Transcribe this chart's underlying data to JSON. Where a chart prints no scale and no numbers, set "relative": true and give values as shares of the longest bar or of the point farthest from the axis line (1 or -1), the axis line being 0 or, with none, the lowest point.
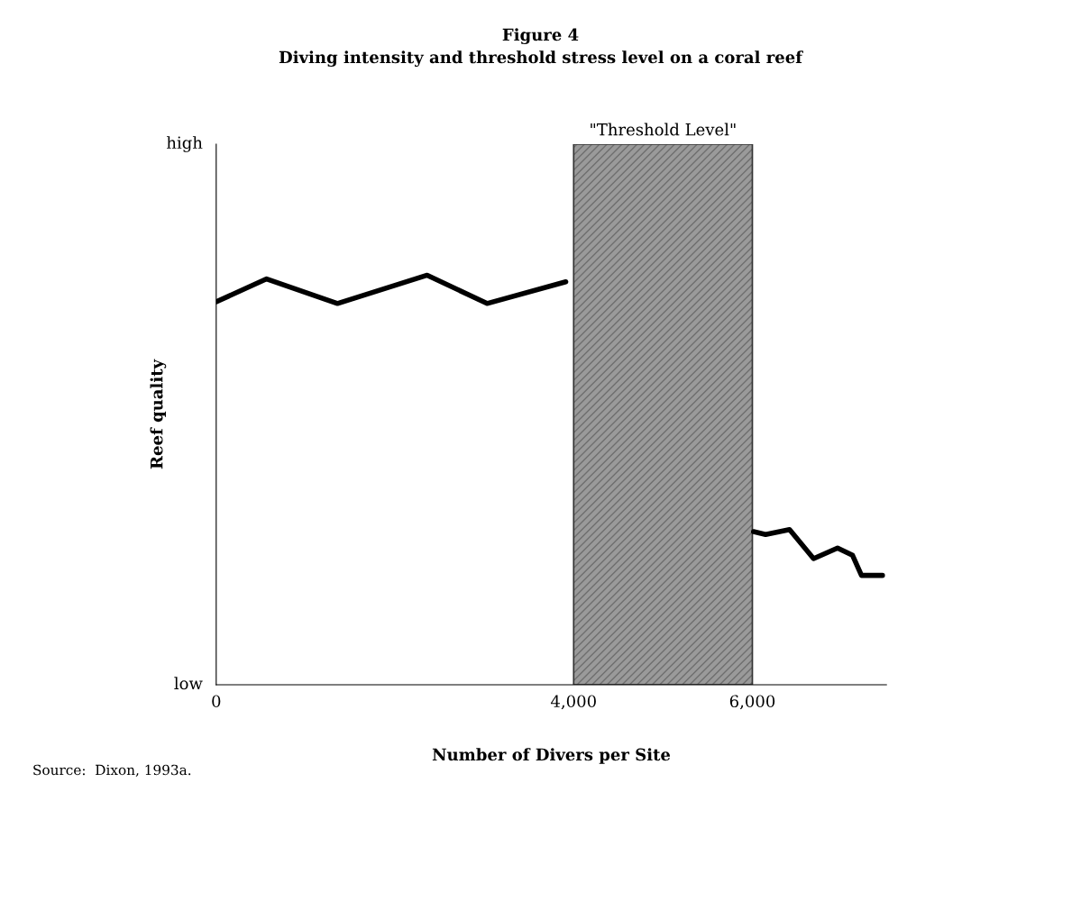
{
  "chart_data": {
    "type": "line",
    "title": "Figure 4",
    "subtitle": "Diving intensity and threshold stress level on a coral reef",
    "xlabel": "Number of Divers per Site",
    "ylabel": "Reef quality",
    "xlim": [
      0,
      7500
    ],
    "xticks": [
      {
        "value": 0,
        "label": "0"
      },
      {
        "value": 4000,
        "label": "4,000"
      },
      {
        "value": 6000,
        "label": "6,000"
      }
    ],
    "relative": true,
    "series": [
      {
        "color": "#000000",
        "x": [
          0,
          564,
          1357,
          2361,
          3031,
          3912
        ],
        "values": [
          0.935,
          0.991,
          0.931,
          1,
          0.931,
          0.984
        ]
      },
      {
        "color": "#000000",
        "x": [
          6013,
          6148,
          6416,
          6685,
          6953,
          7121,
          7221,
          7456
        ],
        "values": [
          0.374,
          0.367,
          0.379,
          0.308,
          0.334,
          0.316,
          0.267,
          0.267
        ]
      }
    ],
    "bands": [
      {
        "axis": "x",
        "from": 4000,
        "to": 6000,
        "label": "\"Threshold Level\"",
        "color": "#9a9a9a"
      }
    ],
    "marker": "none",
    "line_style": "solid",
    "annotations": [
      "high",
      "low",
      "Source:  Dixon, 1993a."
    ]
  }
}
